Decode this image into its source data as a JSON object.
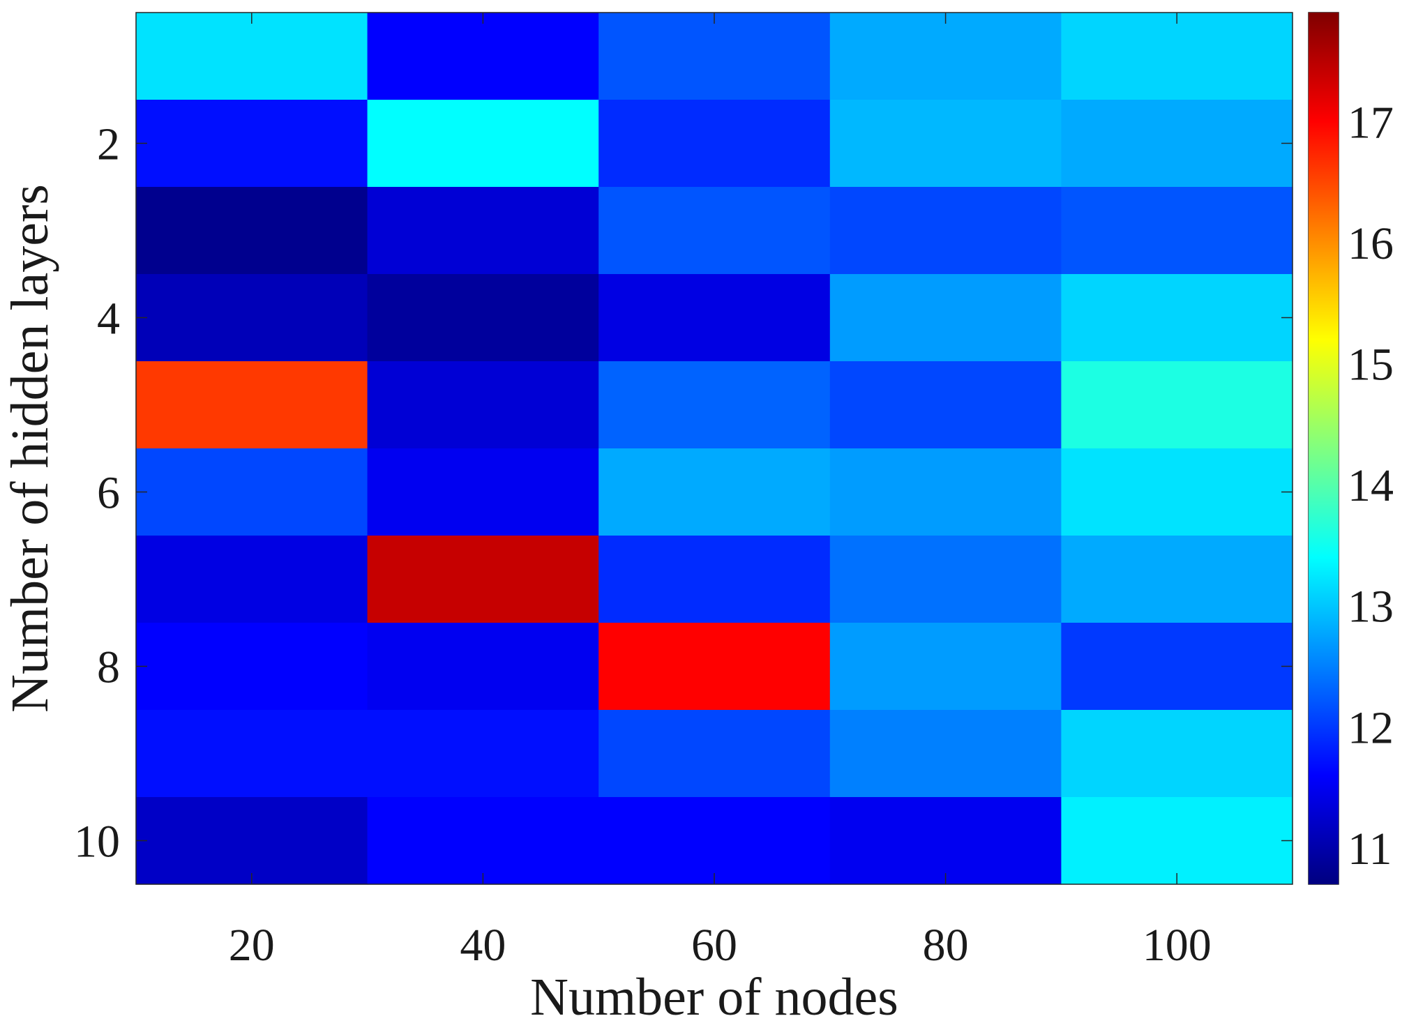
{
  "chart_data": {
    "type": "heatmap",
    "title": "",
    "xlabel": "Number of nodes",
    "ylabel": "Number of hidden layers",
    "x": [
      20,
      40,
      60,
      80,
      100
    ],
    "x_tick_labels": [
      "20",
      "40",
      "60",
      "80",
      "100"
    ],
    "y": [
      1,
      2,
      3,
      4,
      5,
      6,
      7,
      8,
      9,
      10
    ],
    "y_tick_values": [
      2,
      4,
      6,
      8,
      10
    ],
    "y_tick_labels": [
      "2",
      "4",
      "6",
      "8",
      "10"
    ],
    "values": [
      [
        13.2,
        11.6,
        12.2,
        12.8,
        13.1
      ],
      [
        11.7,
        13.4,
        11.9,
        12.9,
        12.8
      ],
      [
        10.8,
        11.3,
        12.2,
        12.1,
        12.2
      ],
      [
        11.1,
        10.9,
        11.4,
        12.7,
        13.1
      ],
      [
        16.6,
        11.3,
        12.3,
        12.1,
        13.6
      ],
      [
        12.1,
        11.5,
        12.8,
        12.7,
        13.2
      ],
      [
        11.4,
        17.4,
        11.9,
        12.4,
        12.8
      ],
      [
        11.6,
        11.5,
        17.0,
        12.7,
        12.0
      ],
      [
        11.7,
        11.7,
        12.1,
        12.5,
        13.1
      ],
      [
        11.2,
        11.6,
        11.6,
        11.5,
        13.3
      ]
    ],
    "colorbar": {
      "min": 10.7,
      "max": 17.9,
      "ticks": [
        11,
        12,
        13,
        14,
        15,
        16,
        17
      ],
      "tick_labels": [
        "11",
        "12",
        "13",
        "14",
        "15",
        "16",
        "17"
      ],
      "colormap": "jet"
    }
  }
}
